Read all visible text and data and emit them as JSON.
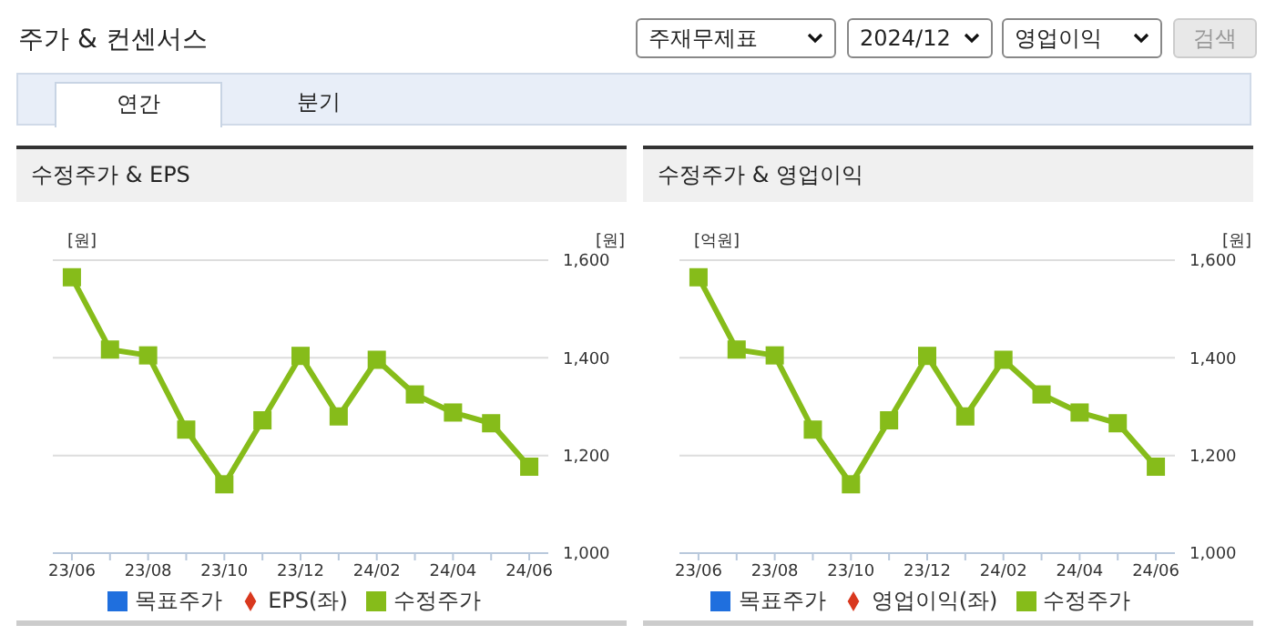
{
  "chart_data": [
    {
      "type": "line",
      "title": "수정주가 & EPS",
      "annotations": [
        "주가 & 컨센서스",
        "주재무제표",
        "2024/12",
        "영업이익",
        "검색",
        "연간",
        "분기"
      ],
      "ylabel": "[원]",
      "y2label": "[원]",
      "categories": [
        "23/06",
        null,
        "23/08",
        null,
        "23/10",
        null,
        "23/12",
        null,
        "24/02",
        null,
        "24/04",
        null,
        "24/06"
      ],
      "y2lim": [
        1000,
        1600
      ],
      "y2ticks": [
        {
          "value": 1000,
          "label": "1,000"
        },
        {
          "value": 1200,
          "label": "1,200"
        },
        {
          "value": 1400,
          "label": "1,400"
        },
        {
          "value": 1600,
          "label": "1,600"
        }
      ],
      "grid": "y",
      "legend": "bottom",
      "series": [
        {
          "name": "목표주가",
          "type": "bar",
          "color": "#1f6fde",
          "values": [
            null,
            null,
            null,
            null,
            null,
            null,
            null,
            null,
            null,
            null,
            null,
            null,
            null
          ]
        },
        {
          "name": "EPS(좌)",
          "marker": "diamond",
          "color": "#d9381e",
          "values": [
            null,
            null,
            null,
            null,
            null,
            null,
            null,
            null,
            null,
            null,
            null,
            null,
            null
          ]
        },
        {
          "name": "수정주가",
          "marker": "square",
          "axis": "y2",
          "color": "#86bc1a",
          "values": [
            1565,
            1417,
            1405,
            1253,
            1141,
            1272,
            1404,
            1280,
            1396,
            1325,
            1288,
            1266,
            1177
          ]
        }
      ]
    },
    {
      "type": "line",
      "title": "수정주가 & 영업이익",
      "ylabel": "[억원]",
      "y2label": "[원]",
      "categories": [
        "23/06",
        null,
        "23/08",
        null,
        "23/10",
        null,
        "23/12",
        null,
        "24/02",
        null,
        "24/04",
        null,
        "24/06"
      ],
      "y2lim": [
        1000,
        1600
      ],
      "y2ticks": [
        {
          "value": 1000,
          "label": "1,000"
        },
        {
          "value": 1200,
          "label": "1,200"
        },
        {
          "value": 1400,
          "label": "1,400"
        },
        {
          "value": 1600,
          "label": "1,600"
        }
      ],
      "grid": "y",
      "legend": "bottom",
      "series": [
        {
          "name": "목표주가",
          "type": "bar",
          "color": "#1f6fde",
          "values": [
            null,
            null,
            null,
            null,
            null,
            null,
            null,
            null,
            null,
            null,
            null,
            null,
            null
          ]
        },
        {
          "name": "영업이익(좌)",
          "marker": "diamond",
          "color": "#d9381e",
          "values": [
            null,
            null,
            null,
            null,
            null,
            null,
            null,
            null,
            null,
            null,
            null,
            null,
            null
          ]
        },
        {
          "name": "수정주가",
          "marker": "square",
          "axis": "y2",
          "color": "#86bc1a",
          "values": [
            1565,
            1417,
            1405,
            1253,
            1141,
            1272,
            1404,
            1280,
            1396,
            1325,
            1288,
            1266,
            1177
          ]
        }
      ]
    }
  ]
}
